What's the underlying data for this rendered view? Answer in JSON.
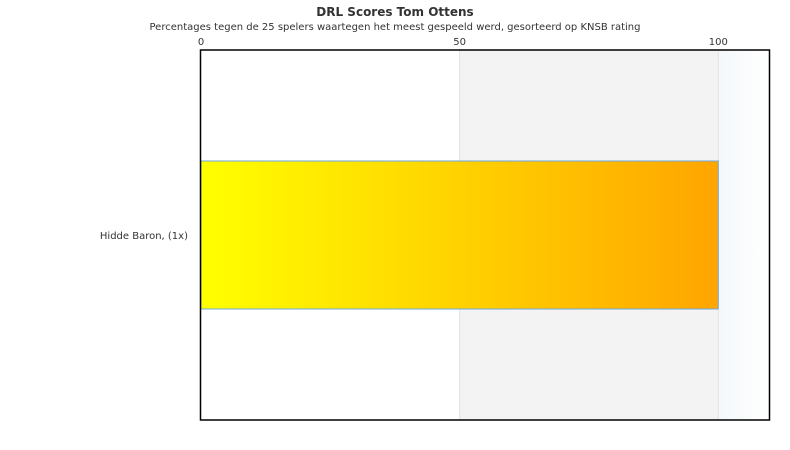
{
  "chart_data": {
    "type": "bar",
    "orientation": "horizontal",
    "title": "DRL Scores Tom Ottens",
    "subtitle": "Percentages tegen de 25 spelers waartegen het meest gespeeld werd, gesorteerd op KNSB rating",
    "categories": [
      "Hidde Baron,  (1x)"
    ],
    "values": [
      100
    ],
    "xlim": [
      0,
      110
    ],
    "xticks": [
      0,
      50,
      100
    ],
    "xtick_labels": [
      "0",
      "50",
      "100"
    ],
    "xaxis_position": "top",
    "bands": [
      {
        "from": 50,
        "to": 100,
        "color": "#f3f3f3"
      },
      {
        "from": 100,
        "to": 110,
        "color": "#f5f9fc"
      }
    ],
    "bar_gradient": [
      "#ffff00",
      "#ffa500"
    ],
    "bar_border": "#6fa8dc",
    "grid": false,
    "legend": "none"
  }
}
